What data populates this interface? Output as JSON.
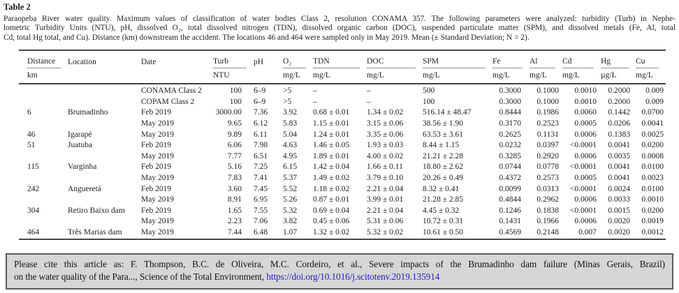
{
  "table_label": "Table 2",
  "caption_lines": [
    "Paraopeba River water quality. Maximum values of classification of water bodies Class 2, resolution CONAMA 357. The following parameters were analyzed: turbidity (Turb) in Nephe-",
    "lometric Turbidity Units (NTU), pH, dissolved O₂, total dissolved nitrogen (TDN), dissolved organic carbon (DOC), suspended particulate matter (SPM), and dissolved metals (Fe, Al, total",
    "Cd, total Hg total, and Cu). Distance (km) downstream the accident. The locations 46 and 464 were sampled only in May 2019. Mean (± Standard Deviation; N = 2)."
  ],
  "table": {
    "columns": [
      {
        "key": "distance",
        "label": "Distance",
        "unit": "km",
        "underline": true
      },
      {
        "key": "location",
        "label": "Location",
        "unit": "",
        "underline": false
      },
      {
        "key": "date",
        "label": "Date",
        "unit": "",
        "underline": false
      },
      {
        "key": "turb",
        "label": "Turb",
        "unit": "NTU",
        "underline": true
      },
      {
        "key": "ph",
        "label": "pH",
        "unit": "",
        "underline": false
      },
      {
        "key": "o2",
        "label": "O₂",
        "unit": "mg/L",
        "underline": true
      },
      {
        "key": "tdn",
        "label": "TDN",
        "unit": "mg/L",
        "underline": true
      },
      {
        "key": "doc",
        "label": "DOC",
        "unit": "mg/L",
        "underline": true
      },
      {
        "key": "spm",
        "label": "SPM",
        "unit": "mg/L",
        "underline": true
      },
      {
        "key": "fe",
        "label": "Fe",
        "unit": "mg/L",
        "underline": true
      },
      {
        "key": "al",
        "label": "Al",
        "unit": "mg/L",
        "underline": true
      },
      {
        "key": "cd",
        "label": "Cd",
        "unit": "mg/L",
        "underline": true
      },
      {
        "key": "hg",
        "label": "Hg",
        "unit": "µg/L",
        "underline": true
      },
      {
        "key": "cu",
        "label": "Cu",
        "unit": "mg/L",
        "underline": true
      }
    ],
    "rows": [
      {
        "distance": "",
        "location": "",
        "date": "CONAMA Class 2",
        "turb": "100",
        "ph": "6–9",
        "o2": ">5",
        "tdn": "–",
        "doc": "–",
        "spm": "500",
        "fe": "0.3000",
        "al": "0.1000",
        "cd": "0.0010",
        "hg": "0.2000",
        "cu": "0.009"
      },
      {
        "distance": "",
        "location": "",
        "date": "COPAM Class 2",
        "turb": "100",
        "ph": "6–9",
        "o2": ">5",
        "tdn": "–",
        "doc": "–",
        "spm": "100",
        "fe": "0.3000",
        "al": "0.1000",
        "cd": "0.0010",
        "hg": "0.2000",
        "cu": "0.009"
      },
      {
        "distance": "6",
        "location": "Brumadinho",
        "date": "Feb 2019",
        "turb": "3000.00",
        "ph": "7.36",
        "o2": "3.92",
        "tdn": "0.68 ± 0.01",
        "doc": "1.34 ± 0.02",
        "spm": "516.14 ± 48.47",
        "fe": "0.8444",
        "al": "0.1986",
        "cd": "0.0060",
        "hg": "0.1442",
        "cu": "0.0700"
      },
      {
        "distance": "",
        "location": "",
        "date": "May 2019",
        "turb": "9.65",
        "ph": "6.12",
        "o2": "5.83",
        "tdn": "1.15 ± 0.01",
        "doc": "3.15 ± 0.06",
        "spm": "38.56 ± 1.90",
        "fe": "0.3170",
        "al": "0.2523",
        "cd": "0.0005",
        "hg": "0.0206",
        "cu": "0.0041"
      },
      {
        "distance": "46",
        "location": "Igarapé",
        "date": "May 2019",
        "turb": "9.89",
        "ph": "6.11",
        "o2": "5.04",
        "tdn": "1.24 ± 0.01",
        "doc": "3.35 ± 0.06",
        "spm": "63.53 ± 3.61",
        "fe": "0.2625",
        "al": "0.1131",
        "cd": "0.0006",
        "hg": "0.1383",
        "cu": "0.0025"
      },
      {
        "distance": "51",
        "location": "Juatuba",
        "date": "Feb 2019",
        "turb": "6.06",
        "ph": "7.98",
        "o2": "4.63",
        "tdn": "1.46 ± 0.05",
        "doc": "1.93 ± 0.03",
        "spm": "8.44 ± 1.15",
        "fe": "0.0232",
        "al": "0.0397",
        "cd": "<0.0001",
        "hg": "0.0041",
        "cu": "0.0200"
      },
      {
        "distance": "",
        "location": "",
        "date": "May 2019",
        "turb": "7.77",
        "ph": "6.51",
        "o2": "4.95",
        "tdn": "1.89 ± 0.01",
        "doc": "4.00 ± 0.02",
        "spm": "21.21 ± 2.28",
        "fe": "0.3285",
        "al": "0.2920",
        "cd": "0.0006",
        "hg": "0.0035",
        "cu": "0.0008"
      },
      {
        "distance": "115",
        "location": "Varginha",
        "date": "Feb 2019",
        "turb": "5.16",
        "ph": "7.25",
        "o2": "6.15",
        "tdn": "1.42 ± 0.04",
        "doc": "1.66 ± 0.11",
        "spm": "18.80 ± 2.62",
        "fe": "0.0744",
        "al": "0.0778",
        "cd": "<0.0001",
        "hg": "0.0041",
        "cu": "0.0100"
      },
      {
        "distance": "",
        "location": "",
        "date": "May 2019",
        "turb": "7.83",
        "ph": "7.41",
        "o2": "5.37",
        "tdn": "1.49 ± 0.02",
        "doc": "3.79 ± 0.10",
        "spm": "20.26 ± 0.49",
        "fe": "0.4372",
        "al": "0.2573",
        "cd": "0.0005",
        "hg": "0.0041",
        "cu": "0.0023"
      },
      {
        "distance": "242",
        "location": "Angueretá",
        "date": "Feb 2019",
        "turb": "3.60",
        "ph": "7.45",
        "o2": "5.52",
        "tdn": "1.18 ± 0.02",
        "doc": "2.21 ± 0.04",
        "spm": "8.32 ± 0.41",
        "fe": "0.0099",
        "al": "0.0313",
        "cd": "<0.0001",
        "hg": "0.0024",
        "cu": "0.0100"
      },
      {
        "distance": "",
        "location": "",
        "date": "May 2019",
        "turb": "8.91",
        "ph": "6.95",
        "o2": "5.26",
        "tdn": "0.87 ± 0.01",
        "doc": "3.99 ± 0.01",
        "spm": "21.28 ± 2.85",
        "fe": "0.4844",
        "al": "0.2962",
        "cd": "0.0006",
        "hg": "0.0033",
        "cu": "0.0010"
      },
      {
        "distance": "304",
        "location": "Retiro Baixo dam",
        "date": "Feb 2019",
        "turb": "1.65",
        "ph": "7.55",
        "o2": "5.32",
        "tdn": "0.69 ± 0.04",
        "doc": "2.21 ± 0.04",
        "spm": "4.45 ± 0.32",
        "fe": "0.1246",
        "al": "0.1838",
        "cd": "<0.0001",
        "hg": "0.0015",
        "cu": "0.0200"
      },
      {
        "distance": "",
        "location": "",
        "date": "May 2019",
        "turb": "2.23",
        "ph": "7.06",
        "o2": "3.82",
        "tdn": "0.45 ± 0.06",
        "doc": "5.31 ± 0.06",
        "spm": "10.72 ± 0.31",
        "fe": "0.1431",
        "al": "0.1966",
        "cd": "0.0006",
        "hg": "0.0020",
        "cu": "0.0019"
      },
      {
        "distance": "464",
        "location": "Três Marias dam",
        "date": "May 2019",
        "turb": "7.44",
        "ph": "6.48",
        "o2": "1.07",
        "tdn": "1.32 ± 0.02",
        "doc": "5.32 ± 0.02",
        "spm": "10.61 ± 0.50",
        "fe": "0.4569",
        "al": "0.2148",
        "cd": "0.007",
        "hg": "0.0020",
        "cu": "0.0012"
      }
    ]
  },
  "citation": {
    "line1": "Please cite this article as: F. Thompson, B.C. de Oliveira, M.C. Cordeiro, et al., Severe impacts of the Brumadinho dam failure (Minas Gerais, Brazil)",
    "line2_text": "on the water quality of the Para..., Science of the Total Environment, ",
    "link": "https://doi.org/10.1016/j.scitotenv.2019.135914"
  },
  "colors": {
    "text": "#1e1e26",
    "rule": "#47474d",
    "link": "#2323bd",
    "box_background": "#d6d6d6",
    "box_border": "#5c5c5e"
  }
}
